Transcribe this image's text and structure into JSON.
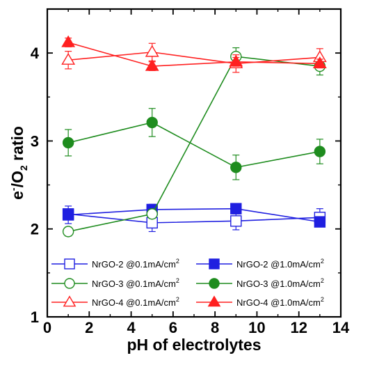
{
  "chart_data": {
    "type": "line",
    "xlabel": "pH of electrolytes",
    "ylabel": {
      "main": "e",
      "sup": "-",
      "mid": "/O",
      "sub": "2",
      "end": " ratio"
    },
    "xlim": [
      0,
      14
    ],
    "ylim": [
      1,
      4.5
    ],
    "xticks": [
      "0",
      "2",
      "4",
      "6",
      "8",
      "10",
      "12",
      "14"
    ],
    "yticks": [
      "1",
      "2",
      "3",
      "4"
    ],
    "grid": false,
    "legend_position": "bottom",
    "series": [
      {
        "name": "NrGO-2 @0.1mA/cm",
        "unit_sup": "2",
        "color": "#1f1fe0",
        "marker": "square",
        "filled": false,
        "x": [
          1,
          5,
          9,
          13
        ],
        "y": [
          2.17,
          2.07,
          2.09,
          2.13
        ],
        "err": [
          0.05,
          0.1,
          0.1,
          0.1
        ]
      },
      {
        "name": "NrGO-2 @1.0mA/cm",
        "unit_sup": "2",
        "color": "#1f1fe0",
        "marker": "square",
        "filled": true,
        "x": [
          1,
          5,
          9,
          13
        ],
        "y": [
          2.16,
          2.22,
          2.23,
          2.08
        ],
        "err": [
          0.1,
          0.06,
          0.06,
          0.05
        ]
      },
      {
        "name": "NrGO-3 @0.1mA/cm",
        "unit_sup": "2",
        "color": "#1e8c1e",
        "marker": "circle",
        "filled": false,
        "x": [
          1,
          5,
          9,
          13
        ],
        "y": [
          1.97,
          2.17,
          3.96,
          3.85
        ],
        "err": [
          0.05,
          0.05,
          0.1,
          0.1
        ]
      },
      {
        "name": "NrGO-3 @1.0mA/cm",
        "unit_sup": "2",
        "color": "#1e8c1e",
        "marker": "circle",
        "filled": true,
        "x": [
          1,
          5,
          9,
          13
        ],
        "y": [
          2.98,
          3.21,
          2.7,
          2.88
        ],
        "err": [
          0.15,
          0.16,
          0.14,
          0.14
        ]
      },
      {
        "name": "NrGO-4 @0.1mA/cm",
        "unit_sup": "2",
        "color": "#ff2020",
        "marker": "triangle",
        "filled": false,
        "x": [
          1,
          5,
          9,
          13
        ],
        "y": [
          3.92,
          4.01,
          3.88,
          3.95
        ],
        "err": [
          0.1,
          0.1,
          0.1,
          0.1
        ]
      },
      {
        "name": "NrGO-4 @1.0mA/cm",
        "unit_sup": "2",
        "color": "#ff2020",
        "marker": "triangle",
        "filled": true,
        "x": [
          1,
          5,
          9,
          13
        ],
        "y": [
          4.12,
          3.85,
          3.9,
          3.88
        ],
        "err": [
          0.05,
          0.05,
          0.05,
          0.05
        ]
      }
    ]
  }
}
